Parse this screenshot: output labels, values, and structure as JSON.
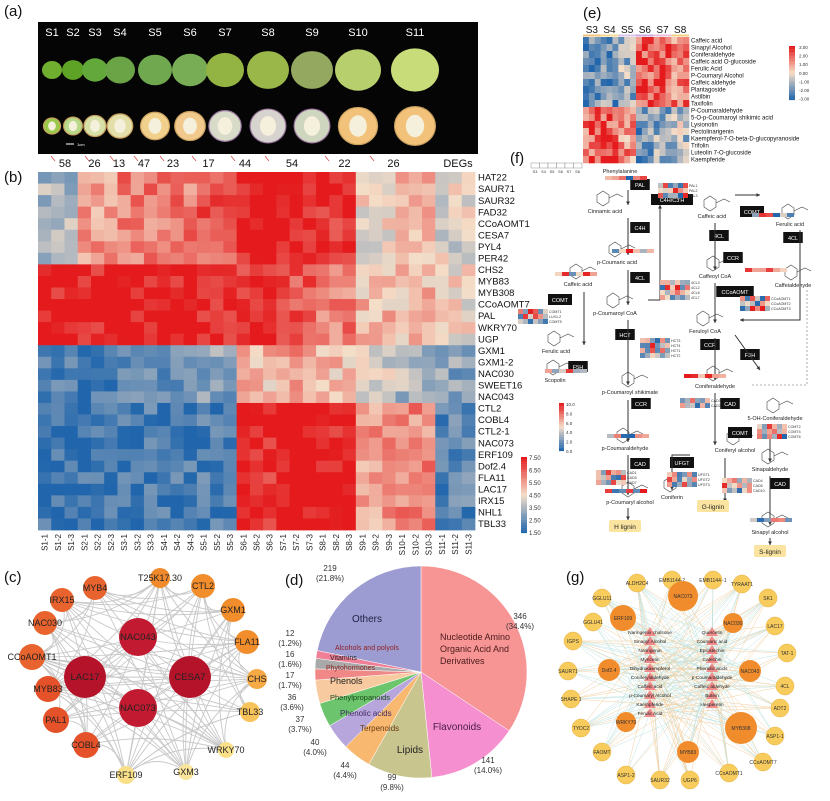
{
  "panels": {
    "a": "(a)",
    "b": "(b)",
    "c": "(c)",
    "d": "(d)",
    "e": "(e)",
    "f": "(f)",
    "g": "(g)"
  },
  "panel_a": {
    "stages": [
      "S1",
      "S2",
      "S3",
      "S4",
      "S5",
      "S6",
      "S7",
      "S8",
      "S9",
      "S10",
      "S11"
    ],
    "scale_bar": "1cm"
  },
  "degs": {
    "values": [
      "58",
      "26",
      "13",
      "47",
      "23",
      "17",
      "44",
      "54",
      "22",
      "26"
    ],
    "label": "DEGs"
  },
  "panel_b": {
    "rows": [
      "HAT22",
      "SAUR71",
      "SAUR32",
      "FAD32",
      "CCoAOMT1",
      "CESA7",
      "PYL4",
      "PER42",
      "CHS2",
      "MYB83",
      "MYB308",
      "CCoAOMT7",
      "PAL",
      "WKRY70",
      "UGP",
      "GXM1",
      "GXM1-2",
      "NAC030",
      "SWEET16",
      "NAC043",
      "CTL2",
      "COBL4",
      "CTL2-1",
      "NAC073",
      "ERF109",
      "Dof2.4",
      "FLA11",
      "LAC17",
      "IRX15",
      "NHL1",
      "TBL33"
    ],
    "row_groups": [
      0,
      0,
      0,
      0,
      0,
      0,
      0,
      0,
      1,
      1,
      1,
      1,
      1,
      1,
      1,
      2,
      2,
      2,
      2,
      2,
      3,
      3,
      3,
      3,
      3,
      3,
      3,
      3,
      3,
      3,
      3
    ],
    "group_stage_profiles": [
      [
        3.5,
        5.5,
        6.0,
        6.0,
        6.5,
        7.5,
        7.5,
        7.2,
        4.5,
        5.0,
        4.2
      ],
      [
        7.5,
        7.5,
        7.5,
        7.5,
        7.4,
        7.2,
        6.6,
        6.0,
        5.0,
        5.0,
        4.5
      ],
      [
        2.0,
        2.0,
        2.2,
        2.5,
        3.0,
        5.0,
        5.5,
        5.0,
        4.0,
        3.5,
        3.0
      ],
      [
        1.8,
        1.8,
        2.0,
        2.0,
        2.2,
        7.3,
        7.5,
        7.5,
        5.5,
        5.8,
        2.3
      ]
    ],
    "columns": [
      "S1-1",
      "S1-2",
      "S1-3",
      "S2-1",
      "S2-2",
      "S2-3",
      "S3-1",
      "S3-2",
      "S3-3",
      "S4-1",
      "S4-2",
      "S4-3",
      "S5-1",
      "S5-2",
      "S5-3",
      "S6-1",
      "S6-2",
      "S6-3",
      "S7-1",
      "S7-2",
      "S7-3",
      "S8-1",
      "S8-2",
      "S8-3",
      "S9-1",
      "S9-2",
      "S9-3",
      "S10-1",
      "S10-2",
      "S10-3",
      "S11-1",
      "S11-2",
      "S11-3"
    ],
    "colorbar": [
      "7.50",
      "6.50",
      "5.50",
      "4.50",
      "3.50",
      "2.50",
      "1.50"
    ],
    "range": [
      1.5,
      7.5
    ]
  },
  "panel_c": {
    "inner": [
      "NAC043",
      "LAC17",
      "CESA7",
      "NAC073"
    ],
    "outer": [
      "MYB4",
      "T25K17.30",
      "CTL2",
      "GXM1",
      "FLA11",
      "CHS",
      "TBL33",
      "WRKY70",
      "GXM3",
      "ERF109",
      "COBL4",
      "PAL1",
      "MYB83",
      "CCoAOMT1",
      "NAC030",
      "IRX15"
    ]
  },
  "chart_data": {
    "type": "pie",
    "title": "",
    "categories": [
      "Nucleotide Amino Organic Acid And Derivatives",
      "Flavonoids",
      "Lipids",
      "Terpenoids",
      "Phenolic acids",
      "Phenylpropanoids",
      "Phenols",
      "Phytohormones",
      "Vitamins",
      "Alcohols and polyols",
      "Others"
    ],
    "values": [
      346,
      141,
      99,
      44,
      40,
      37,
      36,
      17,
      16,
      12,
      219
    ],
    "percent_labels": [
      "(34.4%)",
      "(14.0%)",
      "(9.8%)",
      "(4.4%)",
      "(4.0%)",
      "(3.7%)",
      "(3.6%)",
      "(1.7%)",
      "(1.6%)",
      "(1.2%)",
      "(21.8%)"
    ],
    "colors": [
      "#f79595",
      "#f58fcf",
      "#c9c58f",
      "#f8b870",
      "#b7a6db",
      "#6cc46c",
      "#f8caa0",
      "#f08888",
      "#a9a9a9",
      "#ef8098",
      "#9c9cd2"
    ]
  },
  "panel_e": {
    "columns": [
      "S3",
      "S4",
      "S5",
      "S6",
      "S7",
      "S8"
    ],
    "rows": [
      "Caffeic acid",
      "Sinapyl Alcohol",
      "Coniferaldehyde",
      "Caffeic acid O-glucoside",
      "Ferulic Acid",
      "P-Coumaryl Alcohol",
      "Caffeic aldehyde",
      "Plantagoside",
      "Astilbin",
      "Taxifolin",
      "P-Coumaraldehyde",
      "5-O-p-Coumaroyl shikimic acid",
      "Lysionotin",
      "Pectolinarigenin",
      "Kaempferol-7-O-beta-D-glucopyranoside",
      "Trifolin",
      "Luteolin 7-O-glucoside",
      "Kaempferide"
    ],
    "row_trend": [
      "up",
      "up",
      "up",
      "up",
      "up",
      "up",
      "up",
      "up",
      "up",
      "up",
      "down",
      "down",
      "down",
      "down",
      "down",
      "down",
      "down",
      "down"
    ],
    "colorbar": [
      "3.00",
      "2.00",
      "1.00",
      "0.00",
      "-1.00",
      "-2.00",
      "-3.00"
    ]
  },
  "panel_f": {
    "legend_stages": [
      "S3",
      "S4",
      "S5",
      "S6",
      "S7",
      "S8"
    ],
    "compounds": [
      "Phenylalanine",
      "Cinnamic acid",
      "p-Coumaric acid",
      "Caffeic acid",
      "p-Coumaroyl CoA",
      "Ferulic acid",
      "Scopolin",
      "p-Coumaroyl shikimate",
      "p-Coumaraldehyde",
      "p-Coumaryl alcohol",
      "Caffeic acid",
      "Ferulic acid",
      "Caffeoyl CoA",
      "Caffeialdehyde",
      "Feruloyl CoA",
      "Coniferaldehyde",
      "5-OH-Coniferaldehyde",
      "Coniferyl alcohol",
      "Sinapaldehyde",
      "Coniferin",
      "Sinapyl alcohol"
    ],
    "enzymes": [
      "PAL",
      "C4H",
      "4CL",
      "COMT",
      "HCT",
      "F5H",
      "CCR",
      "CAD",
      "C4H/C3'H",
      "COMT",
      "4CL",
      "4CL",
      "CCR",
      "CCoAOMT",
      "CCR",
      "F5H",
      "CAD",
      "COMT",
      "UFGT",
      "CAD"
    ],
    "lignins": [
      "H lignin",
      "G-lignin",
      "S-lignin"
    ],
    "gene_groups": [
      [
        "PAL1",
        "PAL2",
        "PAL3"
      ],
      [
        "4CL3",
        "4CL2",
        "4CL6",
        "4CL7"
      ],
      [
        "COMT1",
        "LUX1-2",
        "COMT5"
      ],
      [
        "HCT3",
        "HCT4",
        "HCT1",
        "HCT2"
      ],
      [
        "CCoAOMT1",
        "CCoAOMT2",
        "CCoAOMT3"
      ],
      [
        "CAD3",
        "CAD2"
      ],
      [
        "COMT2",
        "COMT4",
        "COMT6"
      ],
      [
        "CAD1",
        "CAD5",
        "CAD7"
      ],
      [
        "UFGT1",
        "UFGT2",
        "UFGT3"
      ],
      [
        "CAD4",
        "CAD6",
        "CAD10"
      ]
    ],
    "colorbar": [
      "10.0",
      "8.0",
      "6.0",
      "4.0",
      "2.0",
      "0.0"
    ]
  },
  "panel_g": {
    "outer": [
      "EMB1144-2",
      "EMB1144 -1",
      "TYRAAT1",
      "SK1",
      "LAC17",
      "TAT-1",
      "4CL",
      "ADT2",
      "ASP1-1",
      "CCoAOMT7",
      "CCoAOMT1",
      "UGP6",
      "SAUR32",
      "ASP1-2",
      "FAOMT",
      "TYDC2",
      "SHAPE 1",
      "SAUR71",
      "IGPS",
      "GGLU41",
      "GGLU11",
      "ALDH2C4"
    ],
    "tfs": [
      "NAC073",
      "NAC030",
      "NAC043",
      "MYB308",
      "MYB83",
      "WRKY70",
      "Dof2.4",
      "ERF109"
    ],
    "metabolites": [
      "Naringenin chalcone",
      "Quercetin",
      "Sinapyl Alcohol",
      "Coumaric acid",
      "Naringenin",
      "Epicatechin",
      "Myricetin",
      "Catechin",
      "Dihydrokaempferol",
      "Phenolic acids",
      "Coniferylaldehyde",
      "p-Coumaraldehyde",
      "Caffeic acid",
      "Caffeic aldehyde",
      "p-Coumaryl Alcohol",
      "Butein",
      "Kaempferide",
      "Hesperetin",
      "Ferulic Acid"
    ]
  }
}
